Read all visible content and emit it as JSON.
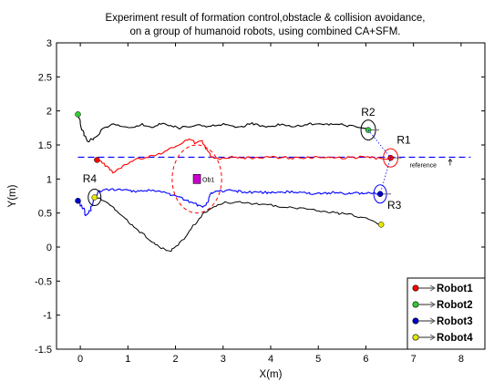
{
  "chart_data": {
    "type": "line",
    "title": [
      "Experiment result of formation control,obstacle & collision avoidance,",
      "on a group of humanoid robots, using combined CA+SFM."
    ],
    "xlabel": "X(m)",
    "ylabel": "Y(m)",
    "xlim": [
      -0.5,
      8.5
    ],
    "ylim": [
      -1.5,
      3
    ],
    "x_ticks": [
      "0",
      "1",
      "2",
      "3",
      "4",
      "5",
      "6",
      "7",
      "8"
    ],
    "y_ticks": [
      "-1.5",
      "-1",
      "-0.5",
      "0",
      "0.5",
      "1",
      "1.5",
      "2",
      "2.5",
      "3"
    ],
    "grid": false,
    "legend_position": "bottom-right",
    "series": [
      {
        "name": "Robot1",
        "color": "#ff0000",
        "marker_color": "#ff0000",
        "points": [
          [
            0.35,
            1.28
          ],
          [
            0.5,
            1.22
          ],
          [
            0.7,
            1.1
          ],
          [
            0.9,
            1.18
          ],
          [
            1.1,
            1.27
          ],
          [
            1.3,
            1.31
          ],
          [
            1.5,
            1.34
          ],
          [
            1.7,
            1.38
          ],
          [
            1.9,
            1.45
          ],
          [
            2.1,
            1.52
          ],
          [
            2.3,
            1.58
          ],
          [
            2.45,
            1.52
          ],
          [
            2.55,
            1.57
          ],
          [
            2.65,
            1.45
          ],
          [
            2.75,
            1.33
          ],
          [
            2.9,
            1.3
          ],
          [
            3.1,
            1.32
          ],
          [
            3.5,
            1.31
          ],
          [
            4.0,
            1.32
          ],
          [
            4.5,
            1.31
          ],
          [
            5.0,
            1.32
          ],
          [
            5.5,
            1.31
          ],
          [
            6.0,
            1.32
          ],
          [
            6.3,
            1.3
          ],
          [
            6.52,
            1.31
          ]
        ]
      },
      {
        "name": "Robot2",
        "color": "#000000",
        "marker_color": "#33cc33",
        "points": [
          [
            -0.05,
            1.95
          ],
          [
            0.05,
            1.7
          ],
          [
            0.15,
            1.55
          ],
          [
            0.3,
            1.6
          ],
          [
            0.5,
            1.75
          ],
          [
            0.7,
            1.8
          ],
          [
            0.9,
            1.78
          ],
          [
            1.1,
            1.75
          ],
          [
            1.3,
            1.8
          ],
          [
            1.5,
            1.76
          ],
          [
            1.7,
            1.82
          ],
          [
            1.9,
            1.78
          ],
          [
            2.1,
            1.75
          ],
          [
            2.3,
            1.77
          ],
          [
            2.5,
            1.8
          ],
          [
            2.7,
            1.77
          ],
          [
            3.0,
            1.8
          ],
          [
            3.3,
            1.76
          ],
          [
            3.6,
            1.81
          ],
          [
            3.9,
            1.77
          ],
          [
            4.2,
            1.8
          ],
          [
            4.5,
            1.76
          ],
          [
            4.8,
            1.81
          ],
          [
            5.1,
            1.79
          ],
          [
            5.4,
            1.8
          ],
          [
            5.7,
            1.78
          ],
          [
            5.9,
            1.76
          ],
          [
            6.05,
            1.72
          ]
        ]
      },
      {
        "name": "Robot3",
        "color": "#0000ff",
        "marker_color": "#0000cc",
        "points": [
          [
            -0.05,
            0.68
          ],
          [
            0.05,
            0.58
          ],
          [
            0.12,
            0.45
          ],
          [
            0.22,
            0.55
          ],
          [
            0.28,
            0.72
          ],
          [
            0.4,
            0.82
          ],
          [
            0.6,
            0.85
          ],
          [
            0.9,
            0.83
          ],
          [
            1.2,
            0.82
          ],
          [
            1.5,
            0.83
          ],
          [
            1.7,
            0.8
          ],
          [
            1.9,
            0.77
          ],
          [
            2.1,
            0.72
          ],
          [
            2.3,
            0.66
          ],
          [
            2.45,
            0.62
          ],
          [
            2.55,
            0.58
          ],
          [
            2.65,
            0.65
          ],
          [
            2.75,
            0.8
          ],
          [
            2.9,
            0.83
          ],
          [
            3.3,
            0.82
          ],
          [
            3.8,
            0.8
          ],
          [
            4.3,
            0.81
          ],
          [
            4.8,
            0.79
          ],
          [
            5.3,
            0.8
          ],
          [
            5.8,
            0.79
          ],
          [
            6.1,
            0.8
          ],
          [
            6.3,
            0.78
          ]
        ]
      },
      {
        "name": "Robot4",
        "color": "#000000",
        "marker_color": "#e8e800",
        "points": [
          [
            0.3,
            0.73
          ],
          [
            0.5,
            0.68
          ],
          [
            0.7,
            0.58
          ],
          [
            0.9,
            0.45
          ],
          [
            1.1,
            0.32
          ],
          [
            1.3,
            0.2
          ],
          [
            1.5,
            0.08
          ],
          [
            1.7,
            -0.02
          ],
          [
            1.9,
            -0.05
          ],
          [
            2.05,
            0.02
          ],
          [
            2.2,
            0.15
          ],
          [
            2.35,
            0.28
          ],
          [
            2.5,
            0.42
          ],
          [
            2.6,
            0.5
          ],
          [
            2.8,
            0.6
          ],
          [
            3.0,
            0.65
          ],
          [
            3.3,
            0.66
          ],
          [
            3.6,
            0.64
          ],
          [
            3.9,
            0.62
          ],
          [
            4.2,
            0.6
          ],
          [
            4.5,
            0.58
          ],
          [
            4.8,
            0.55
          ],
          [
            5.1,
            0.52
          ],
          [
            5.4,
            0.5
          ],
          [
            5.7,
            0.47
          ],
          [
            6.0,
            0.42
          ],
          [
            6.2,
            0.36
          ],
          [
            6.32,
            0.33
          ]
        ]
      }
    ],
    "reference_line": {
      "y": 1.32,
      "x_range": [
        -0.05,
        8.2
      ],
      "color": "#0000ff",
      "label": "reference"
    },
    "obstacle": {
      "label": "Ob1",
      "x": 2.45,
      "y": 1.0,
      "color": "#cc00cc",
      "avoid_ellipse": {
        "cx": 2.45,
        "cy": 1.0,
        "rx": 0.52,
        "ry": 0.5
      }
    },
    "robot_labels": [
      {
        "text": "R1",
        "x": 6.65,
        "y": 1.52
      },
      {
        "text": "R2",
        "x": 5.9,
        "y": 1.93
      },
      {
        "text": "R3",
        "x": 6.45,
        "y": 0.56
      },
      {
        "text": "R4",
        "x": 0.05,
        "y": 0.95
      }
    ],
    "legend": [
      "Robot1",
      "Robot2",
      "Robot3",
      "Robot4"
    ]
  }
}
